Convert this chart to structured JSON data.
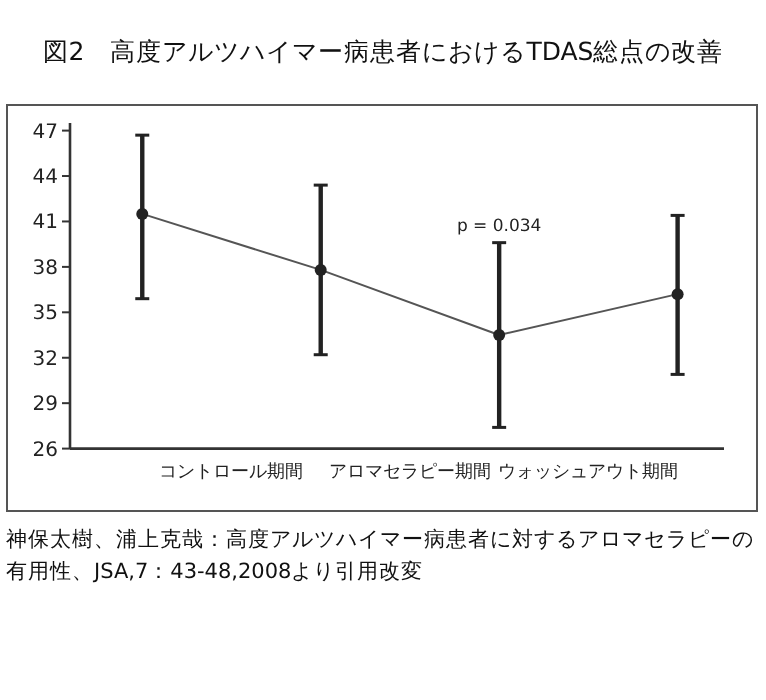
{
  "chart_data": {
    "type": "line",
    "title": "図2　高度アルツハイマー病患者におけるTDAS総点の改善",
    "categories": [
      null,
      "コントロール期間",
      null,
      "アロマセラピー期間",
      null,
      "ウォッシュアウト期間",
      null
    ],
    "series": [
      {
        "color": "#222222",
        "values": [
          41.5,
          null,
          37.8,
          null,
          33.5,
          null,
          36.2
        ],
        "errors": [
          [
            35.9,
            46.7
          ],
          null,
          [
            32.2,
            43.4
          ],
          null,
          [
            27.4,
            39.6
          ],
          null,
          [
            30.9,
            41.4
          ]
        ]
      }
    ],
    "ylim": [
      26,
      47.5
    ],
    "yticks": [
      26,
      29,
      32,
      35,
      38,
      41,
      44,
      47
    ],
    "marker": "circle",
    "grid": false,
    "annotations": [
      {
        "text": "p = 0.034",
        "y": 39.6
      },
      "神保太樹、浦上克哉：高度アルツハイマー病患者に対するアロマセラピーの有用性、JSA,7：43-48,2008より引用改変"
    ]
  }
}
